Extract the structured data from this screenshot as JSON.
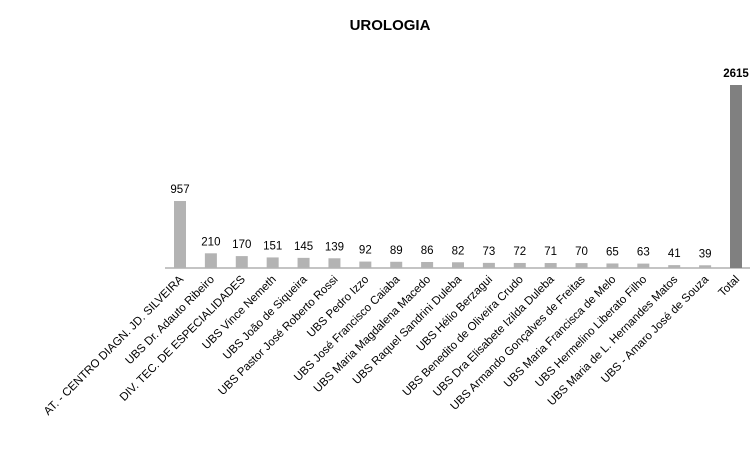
{
  "chart_data": {
    "type": "bar",
    "title": "UROLOGIA",
    "categories": [
      "AT. - CENTRO DIAGN. JD. SILVEIRA",
      "UBS Dr. Adauto Ribeiro",
      "DIV. TEC. DE ESPECIALIDADES",
      "UBS Vince Nemeth",
      "UBS João de Siqueira",
      "UBS Pastor José Roberto Rossi",
      "UBS Pedro Izzo",
      "UBS José Francisco Caiaba",
      "UBS Maria Magdalena Macedo",
      "UBS Raquel Sandrini Duleba",
      "UBS Hélio Berzagui",
      "UBS Benedito de Oliveira Crudo",
      "UBS Dra Elisabete Izilda Duleba",
      "UBS Armando Gonçalves de Freitas",
      "UBS Maria Francisca de Melo",
      "UBS Hermelino Liberato Filho",
      "UBS Maria de L. Hernandes Matos",
      "UBS - Amaro José de Souza",
      "Total"
    ],
    "values": [
      957,
      210,
      170,
      151,
      145,
      139,
      92,
      89,
      86,
      82,
      73,
      72,
      71,
      70,
      65,
      63,
      41,
      39,
      2615
    ],
    "colors": [
      "#b3b3b3",
      "#b3b3b3",
      "#b3b3b3",
      "#b3b3b3",
      "#b3b3b3",
      "#b3b3b3",
      "#b3b3b3",
      "#b3b3b3",
      "#b3b3b3",
      "#b3b3b3",
      "#b3b3b3",
      "#b3b3b3",
      "#b3b3b3",
      "#b3b3b3",
      "#b3b3b3",
      "#b3b3b3",
      "#b3b3b3",
      "#b3b3b3",
      "#808080"
    ]
  }
}
